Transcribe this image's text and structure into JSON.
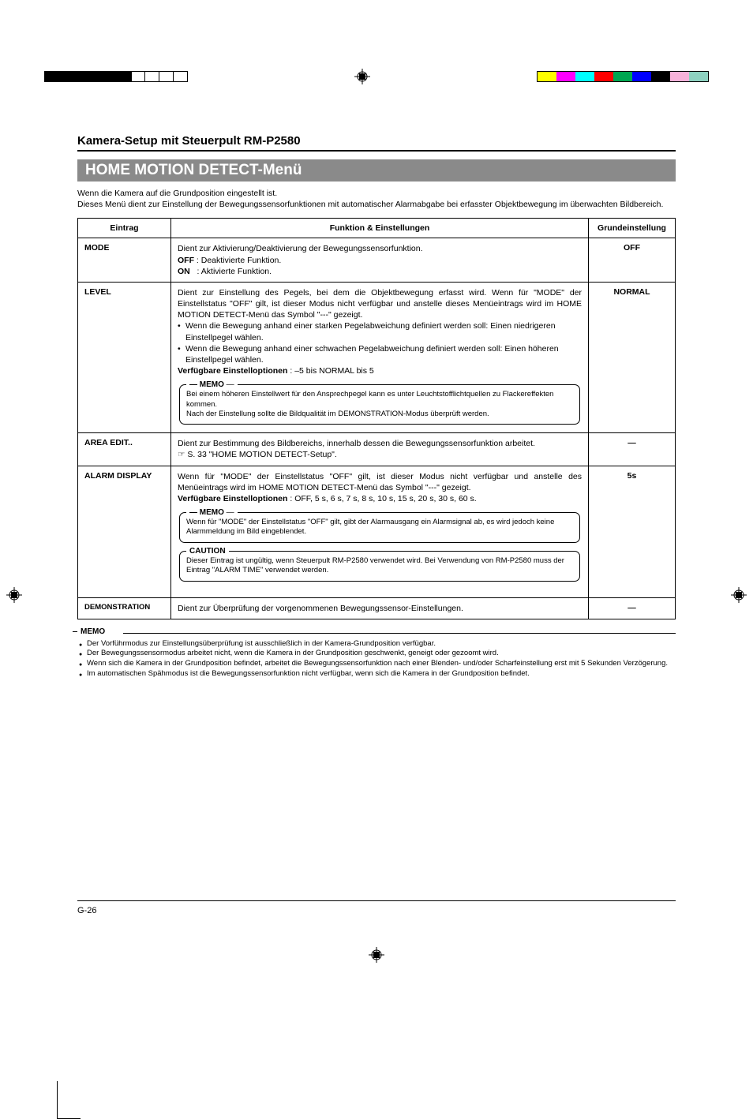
{
  "reg_colors_right": [
    "#ffff00",
    "#ff00ff",
    "#00ffff",
    "#ff0000",
    "#00a651",
    "#0000ff",
    "#000000",
    "#f7b2d9",
    "#8ed1c0"
  ],
  "kicker": "Kamera-Setup mit Steuerpult RM-P2580",
  "menu_title": "HOME MOTION DETECT-Menü",
  "intro_line1": "Wenn die Kamera auf die Grundposition eingestellt ist.",
  "intro_line2": "Dieses Menü dient zur Einstellung der Bewegungssensorfunktionen mit automatischer Alarmabgabe bei erfasster Objektbewegung im überwachten Bildbereich.",
  "headers": {
    "c0": "Eintrag",
    "c1": "Funktion & Einstellungen",
    "c2": "Grundeinstellung"
  },
  "rows": {
    "mode": {
      "label": "MODE",
      "desc_line1": "Dient zur Aktivierung/Deaktivierung der Bewegungssensorfunktion.",
      "off_label": "OFF",
      "off_text": ": Deaktivierte Funktion.",
      "on_label": "ON",
      "on_text": ": Aktivierte Funktion.",
      "default": "OFF"
    },
    "level": {
      "label": "LEVEL",
      "p1": "Dient zur Einstellung des Pegels, bei dem die Objektbewegung erfasst wird. Wenn für \"MODE\" der Einstellstatus \"OFF\" gilt, ist dieser Modus nicht verfügbar und anstelle dieses Menüeintrags  wird im HOME MOTION DETECT-Menü das Symbol \"---\" gezeigt.",
      "b1": "Wenn die Bewegung anhand einer starken Pegelabweichung definiert werden soll: Einen niedrigeren Einstellpegel wählen.",
      "b2": "Wenn die Bewegung anhand einer schwachen Pegelabweichung definiert werden soll: Einen höheren Einstellpegel wählen.",
      "opts_label": "Verfügbare Einstelloptionen",
      "opts_text": " : –5 bis NORMAL bis 5",
      "memo_label": "MEMO",
      "memo_l1": "Bei einem höheren Einstellwert für den Ansprechpegel kann es unter Leuchtstofflichtquellen zu Flackereffekten kommen.",
      "memo_l2": "Nach der Einstellung sollte die Bildqualität im DEMONSTRATION-Modus überprüft werden.",
      "default": "NORMAL"
    },
    "area": {
      "label": "AREA EDIT..",
      "p1": "Dient zur Bestimmung des Bildbereichs, innerhalb dessen die Bewegungssensorfunktion arbeitet.",
      "ref": "☞ S. 33 \"HOME MOTION DETECT-Setup\".",
      "default": "—"
    },
    "alarm": {
      "label": "ALARM DISPLAY",
      "p1": "Wenn für \"MODE\" der Einstellstatus \"OFF\" gilt, ist dieser Modus nicht verfügbar und anstelle des Menüeintrags  wird im HOME MOTION DETECT-Menü das Symbol \"---\" gezeigt.",
      "opts_label": "Verfügbare Einstelloptionen",
      "opts_text": "  : OFF, 5 s, 6 s, 7 s, 8 s, 10 s, 15 s, 20 s, 30 s, 60 s.",
      "memo_label": "MEMO",
      "memo_l1": "Wenn für \"MODE\" der Einstellstatus \"OFF\" gilt, gibt der Alarmausgang ein Alarmsignal ab, es wird jedoch keine Alarmmeldung im Bild eingeblendet.",
      "caution_label": "CAUTION",
      "caution_l1": "Dieser Eintrag ist ungültig, wenn Steuerpult RM-P2580 verwendet wird. Bei Verwendung von RM-P2580 muss der Eintrag \"ALARM TIME\" verwendet werden.",
      "default": "5s"
    },
    "demo": {
      "label": "DEMONSTRATION",
      "p1": "Dient zur Überprüfung der vorgenommenen Bewegungssensor-Einstellungen.",
      "default": "—"
    }
  },
  "open_memo": {
    "label": "MEMO",
    "items": [
      "Der Vorführmodus zur Einstellungsüberprüfung ist ausschließlich in der Kamera-Grundposition verfügbar.",
      "Der Bewegungssensormodus arbeitet nicht, wenn die Kamera in der Grundposition geschwenkt, geneigt oder gezoomt wird.",
      "Wenn sich die Kamera in der Grundposition befindet, arbeitet die Bewegungssensorfunktion nach einer Blenden- und/oder Scharfeinstellung erst mit 5 Sekunden Verzögerung.",
      "Im automatischen Spähmodus ist die Bewegungssensorfunktion nicht verfügbar, wenn sich die Kamera in der Grundposition befindet."
    ]
  },
  "page_num": "G-26"
}
